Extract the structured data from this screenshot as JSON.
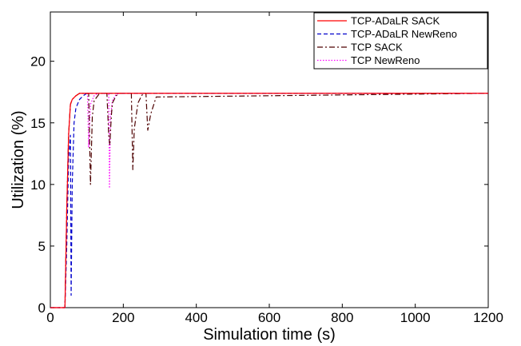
{
  "chart_data": {
    "type": "line",
    "title": "",
    "xlabel": "Simulation time (s)",
    "ylabel": "Utilization (%)",
    "xlim": [
      0,
      1200
    ],
    "ylim": [
      0,
      24
    ],
    "xticks": [
      0,
      200,
      400,
      600,
      800,
      1000,
      1200
    ],
    "yticks": [
      0,
      5,
      10,
      15,
      20
    ],
    "grid": false,
    "legend_position": "top-right",
    "series": [
      {
        "name": "TCP-ADaLR SACK",
        "color": "#ff0000",
        "dash": "solid",
        "x": [
          0,
          40,
          45,
          50,
          55,
          60,
          70,
          80,
          1200
        ],
        "y": [
          0,
          0,
          8,
          14,
          16.5,
          16.9,
          17.2,
          17.4,
          17.4
        ]
      },
      {
        "name": "TCP-ADaLR NewReno",
        "color": "#0000cc",
        "dash": "dashed",
        "x": [
          0,
          40,
          45,
          50,
          55,
          57,
          60,
          65,
          70,
          80,
          90,
          100,
          1200
        ],
        "y": [
          0,
          0,
          5,
          12,
          14,
          1,
          10,
          15,
          16.2,
          16.9,
          17.2,
          17.4,
          17.4
        ]
      },
      {
        "name": "TCP SACK",
        "color": "#4d0000",
        "dash": "dashdot",
        "x": [
          0,
          40,
          45,
          50,
          55,
          60,
          70,
          80,
          90,
          100,
          105,
          110,
          115,
          120,
          135,
          150,
          155,
          160,
          163,
          167,
          170,
          180,
          190,
          200,
          215,
          222,
          226,
          230,
          240,
          250,
          255,
          262,
          267,
          275,
          290,
          1200
        ],
        "y": [
          0,
          0,
          8,
          14,
          16.5,
          16.9,
          17.2,
          17.4,
          17.4,
          17.4,
          17.4,
          10,
          15.5,
          16.8,
          17.4,
          17.4,
          17.4,
          14,
          13.2,
          15.5,
          16.6,
          17.2,
          17.4,
          17.4,
          17.4,
          17.4,
          11.2,
          14.5,
          16.6,
          17.2,
          17.4,
          17.4,
          14.4,
          15.7,
          17.1,
          17.4
        ]
      },
      {
        "name": "TCP NewReno",
        "color": "#ff00ff",
        "dash": "dotted",
        "x": [
          0,
          40,
          45,
          50,
          55,
          60,
          70,
          80,
          90,
          100,
          102,
          105,
          110,
          120,
          130,
          140,
          150,
          155,
          160,
          162,
          165,
          170,
          180,
          190,
          200,
          1200
        ],
        "y": [
          0,
          0,
          8,
          14,
          16.5,
          16.9,
          17.2,
          17.4,
          17.4,
          17.4,
          17.4,
          13,
          16.5,
          17.2,
          17.4,
          17.4,
          17.4,
          17.4,
          17.4,
          9.7,
          15.5,
          16.8,
          17.3,
          17.4,
          17.4,
          17.4
        ]
      }
    ]
  }
}
